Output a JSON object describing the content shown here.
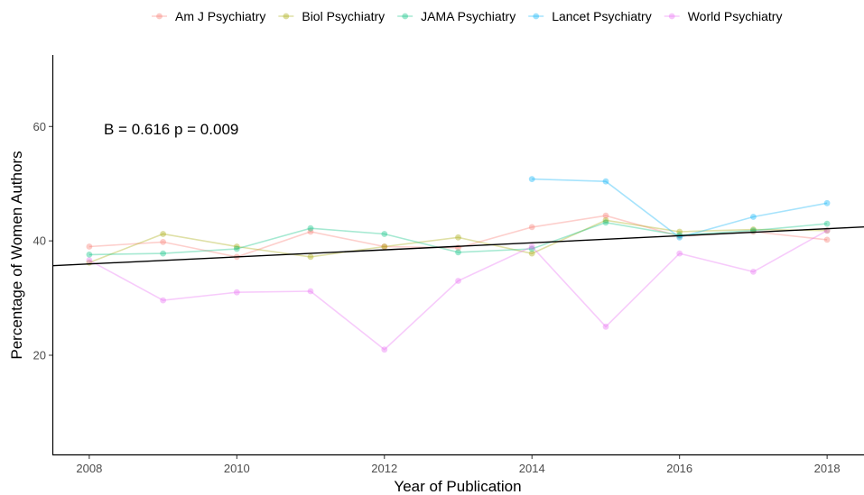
{
  "chart_data": {
    "type": "line",
    "xlabel": "Year of Publication",
    "ylabel": "Percentage of Women Authors",
    "xlim": [
      2007.5,
      2018.5
    ],
    "ylim": [
      2.5,
      72.5
    ],
    "xticks": [
      2008,
      2010,
      2012,
      2014,
      2016,
      2018
    ],
    "yticks": [
      20,
      40,
      60
    ],
    "annotation": "B = 0.616 p = 0.009",
    "legend_position": "top",
    "grid": false,
    "series": [
      {
        "name": "Am J Psychiatry",
        "color": "#F8766D",
        "points": [
          [
            2008,
            39.0
          ],
          [
            2009,
            39.8
          ],
          [
            2010,
            37.2
          ],
          [
            2011,
            41.6
          ],
          [
            2012,
            39.0
          ],
          [
            2013,
            38.8
          ],
          [
            2014,
            42.4
          ],
          [
            2015,
            44.4
          ],
          [
            2016,
            40.8
          ],
          [
            2017,
            41.6
          ],
          [
            2018,
            40.2
          ]
        ]
      },
      {
        "name": "Biol Psychiatry",
        "color": "#A3A500",
        "points": [
          [
            2008,
            36.2
          ],
          [
            2009,
            41.2
          ],
          [
            2010,
            39.0
          ],
          [
            2011,
            37.2
          ],
          [
            2012,
            39.0
          ],
          [
            2013,
            40.6
          ],
          [
            2014,
            37.8
          ],
          [
            2015,
            43.6
          ],
          [
            2016,
            41.6
          ],
          [
            2017,
            42.0
          ],
          [
            2018,
            41.8
          ]
        ]
      },
      {
        "name": "JAMA Psychiatry",
        "color": "#00BF7D",
        "points": [
          [
            2008,
            37.6
          ],
          [
            2009,
            37.8
          ],
          [
            2010,
            38.6
          ],
          [
            2011,
            42.2
          ],
          [
            2012,
            41.2
          ],
          [
            2013,
            38.0
          ],
          [
            2014,
            38.6
          ],
          [
            2015,
            43.2
          ],
          [
            2016,
            41.0
          ],
          [
            2017,
            41.8
          ],
          [
            2018,
            43.0
          ]
        ]
      },
      {
        "name": "Lancet Psychiatry",
        "color": "#00B0F6",
        "points": [
          [
            2014,
            50.8
          ],
          [
            2015,
            50.4
          ],
          [
            2016,
            40.6
          ],
          [
            2017,
            44.2
          ],
          [
            2018,
            46.6
          ]
        ]
      },
      {
        "name": "World Psychiatry",
        "color": "#E76BF3",
        "points": [
          [
            2008,
            36.6
          ],
          [
            2009,
            29.6
          ],
          [
            2010,
            31.0
          ],
          [
            2011,
            31.2
          ],
          [
            2012,
            21.0
          ],
          [
            2013,
            33.0
          ],
          [
            2014,
            39.0
          ],
          [
            2015,
            25.0
          ],
          [
            2016,
            37.8
          ],
          [
            2017,
            34.6
          ],
          [
            2018,
            41.8
          ]
        ]
      }
    ],
    "trendline": {
      "color": "#000000",
      "points": [
        [
          2007.5,
          35.65
        ],
        [
          2018.5,
          42.43
        ]
      ]
    }
  }
}
